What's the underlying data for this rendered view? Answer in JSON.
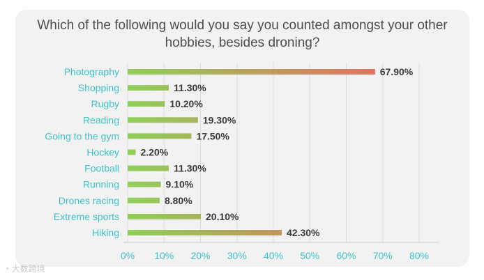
{
  "chart_data": {
    "type": "bar",
    "orientation": "horizontal",
    "title": "Which of the following would you say you counted amongst your other hobbies, besides droning?",
    "categories": [
      "Photography",
      "Shopping",
      "Rugby",
      "Reading",
      "Going to the gym",
      "Hockey",
      "Football",
      "Running",
      "Drones racing",
      "Extreme sports",
      "Hiking"
    ],
    "values": [
      67.9,
      11.3,
      10.2,
      19.3,
      17.5,
      2.2,
      11.3,
      9.1,
      8.8,
      20.1,
      42.3
    ],
    "value_labels": [
      "67.90%",
      "11.30%",
      "10.20%",
      "19.30%",
      "17.50%",
      "2.20%",
      "11.30%",
      "9.10%",
      "8.80%",
      "20.10%",
      "42.30%"
    ],
    "xlim": [
      0,
      80
    ],
    "ticks": [
      0,
      10,
      20,
      30,
      40,
      50,
      60,
      70,
      80
    ],
    "tick_labels": [
      "0%",
      "10%",
      "20%",
      "30%",
      "40%",
      "50%",
      "60%",
      "70%",
      "80%"
    ],
    "grid": true,
    "colors": {
      "bar_start": "#8fcf5a",
      "bar_end": "#ee6262",
      "label": "#3cc3c8",
      "value": "#3a3a3a",
      "grid": "#dcdcdc"
    }
  },
  "watermark": {
    "text": "大数跨境"
  }
}
